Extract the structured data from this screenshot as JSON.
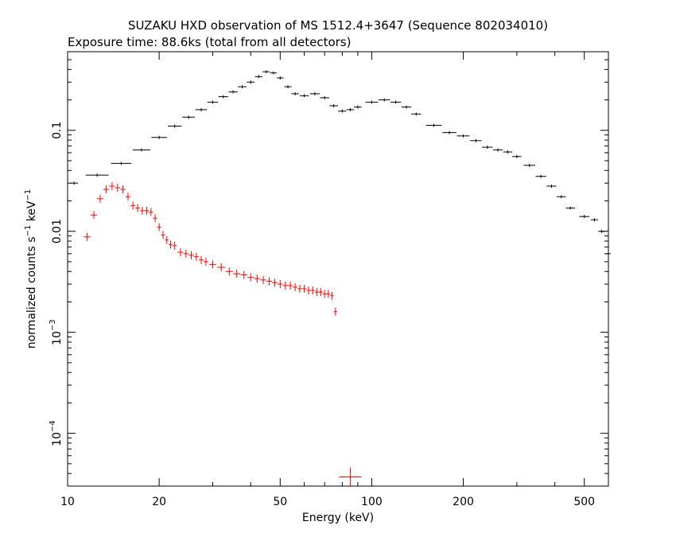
{
  "chart_data": {
    "type": "scatter",
    "title": "SUZAKU HXD observation of MS 1512.4+3647 (Sequence 802034010)",
    "subtitle": "Exposure time: 88.6ks (total from all detectors)",
    "xlabel": "Energy (keV)",
    "ylabel": {
      "prefix": "normalized counts s",
      "sup1": "−1",
      "mid": " keV",
      "sup2": "−1"
    },
    "x_scale": "log",
    "y_scale": "log",
    "xlim": [
      10,
      600
    ],
    "ylim": [
      3e-05,
      0.6
    ],
    "x_ticks": [
      {
        "value": 10,
        "label": "10"
      },
      {
        "value": 20,
        "label": "20"
      },
      {
        "value": 50,
        "label": "50"
      },
      {
        "value": 100,
        "label": "100"
      },
      {
        "value": 200,
        "label": "200"
      },
      {
        "value": 500,
        "label": "500"
      }
    ],
    "y_ticks": [
      {
        "value": 0.0001,
        "base": "10",
        "exp": "−4"
      },
      {
        "value": 0.001,
        "base": "10",
        "exp": "−3"
      },
      {
        "value": 0.01,
        "label": "0.01"
      },
      {
        "value": 0.1,
        "label": "0.1"
      }
    ],
    "grid": false,
    "series": [
      {
        "color": "#000000",
        "points": [
          [
            10.5,
            0.03
          ],
          [
            12.5,
            0.036
          ],
          [
            15.0,
            0.047
          ],
          [
            17.5,
            0.064
          ],
          [
            20.0,
            0.085
          ],
          [
            22.5,
            0.11
          ],
          [
            25.0,
            0.135
          ],
          [
            27.5,
            0.16
          ],
          [
            30.0,
            0.19
          ],
          [
            32.5,
            0.215
          ],
          [
            35.0,
            0.24
          ],
          [
            37.5,
            0.27
          ],
          [
            40.0,
            0.3
          ],
          [
            42.5,
            0.34
          ],
          [
            45.0,
            0.38
          ],
          [
            47.5,
            0.37
          ],
          [
            50.0,
            0.33
          ],
          [
            53.0,
            0.27
          ],
          [
            56.0,
            0.23
          ],
          [
            60.0,
            0.22
          ],
          [
            65.0,
            0.23
          ],
          [
            70.0,
            0.21
          ],
          [
            75.0,
            0.175
          ],
          [
            80.0,
            0.155
          ],
          [
            85.0,
            0.16
          ],
          [
            90.0,
            0.17
          ],
          [
            100.0,
            0.19
          ],
          [
            110.0,
            0.2
          ],
          [
            120.0,
            0.19
          ],
          [
            130.0,
            0.17
          ],
          [
            140.0,
            0.145
          ],
          [
            160.0,
            0.112
          ],
          [
            180.0,
            0.095
          ],
          [
            200.0,
            0.088
          ],
          [
            220.0,
            0.079
          ],
          [
            240.0,
            0.068
          ],
          [
            260.0,
            0.064
          ],
          [
            280.0,
            0.061
          ],
          [
            300.0,
            0.055
          ],
          [
            330.0,
            0.045
          ],
          [
            360.0,
            0.035
          ],
          [
            390.0,
            0.028
          ],
          [
            420.0,
            0.022
          ],
          [
            450.0,
            0.017
          ],
          [
            500.0,
            0.014
          ],
          [
            540.0,
            0.013
          ],
          [
            570.0,
            0.01
          ],
          [
            600.0,
            0.006
          ]
        ]
      },
      {
        "color": "#ff0000",
        "points": [
          [
            11.6,
            0.0088
          ],
          [
            12.2,
            0.0145
          ],
          [
            12.8,
            0.021
          ],
          [
            13.4,
            0.026
          ],
          [
            14.0,
            0.028
          ],
          [
            14.6,
            0.027
          ],
          [
            15.2,
            0.026
          ],
          [
            15.8,
            0.022
          ],
          [
            16.4,
            0.018
          ],
          [
            17.0,
            0.017
          ],
          [
            17.6,
            0.016
          ],
          [
            18.2,
            0.016
          ],
          [
            18.8,
            0.0155
          ],
          [
            19.4,
            0.0135
          ],
          [
            20.0,
            0.011
          ],
          [
            20.6,
            0.0092
          ],
          [
            21.2,
            0.0082
          ],
          [
            21.8,
            0.0074
          ],
          [
            22.5,
            0.0072
          ],
          [
            23.5,
            0.0062
          ],
          [
            24.5,
            0.006
          ],
          [
            25.5,
            0.0058
          ],
          [
            26.5,
            0.0056
          ],
          [
            27.5,
            0.0052
          ],
          [
            28.5,
            0.005
          ],
          [
            30.0,
            0.0047
          ],
          [
            32.0,
            0.0044
          ],
          [
            34.0,
            0.004
          ],
          [
            36.0,
            0.0038
          ],
          [
            38.0,
            0.0037
          ],
          [
            40.0,
            0.0035
          ],
          [
            42.0,
            0.0034
          ],
          [
            44.0,
            0.0033
          ],
          [
            46.0,
            0.0032
          ],
          [
            48.0,
            0.0031
          ],
          [
            50.0,
            0.003
          ],
          [
            52.0,
            0.0029
          ],
          [
            54.0,
            0.0029
          ],
          [
            56.0,
            0.0028
          ],
          [
            58.0,
            0.0027
          ],
          [
            60.0,
            0.0027
          ],
          [
            62.0,
            0.0026
          ],
          [
            64.0,
            0.0026
          ],
          [
            66.0,
            0.0025
          ],
          [
            68.0,
            0.0025
          ],
          [
            70.0,
            0.0024
          ],
          [
            72.0,
            0.0024
          ],
          [
            74.0,
            0.0023
          ],
          [
            76.0,
            0.0016
          ]
        ]
      }
    ],
    "marker": {
      "x": 85,
      "y": 3.7e-05,
      "color": "#ff0000"
    }
  }
}
